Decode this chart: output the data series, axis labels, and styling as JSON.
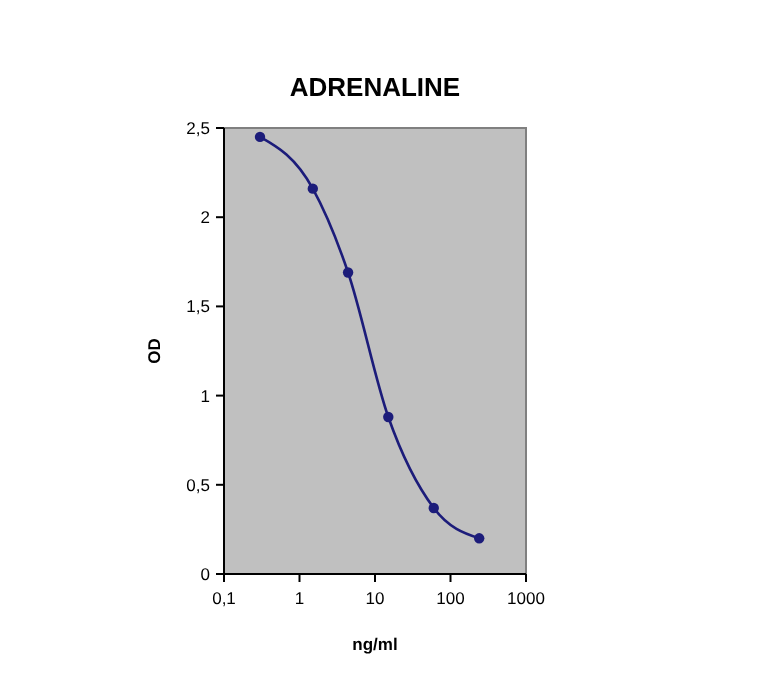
{
  "chart_data": {
    "type": "line",
    "title": "ADRENALINE",
    "xlabel": "ng/ml",
    "ylabel": "OD",
    "log": "x",
    "x": [
      0.3,
      1.5,
      4.4,
      15,
      60,
      240
    ],
    "series": [
      {
        "color": "#1c1c7a",
        "values": [
          2.45,
          2.16,
          1.69,
          0.88,
          0.37,
          0.2
        ]
      }
    ],
    "xlim": [
      0.1,
      1000
    ],
    "xticks": [
      {
        "value": 0.1,
        "label": "0,1"
      },
      1,
      10,
      100,
      1000
    ],
    "ylim": [
      0,
      2.5
    ],
    "yticks": [
      0,
      {
        "value": 0.5,
        "label": "0,5"
      },
      1,
      {
        "value": 1.5,
        "label": "1,5"
      },
      2,
      {
        "value": 2.5,
        "label": "2,5"
      }
    ],
    "grid": false,
    "marker": "circle",
    "line_style": "solid"
  }
}
